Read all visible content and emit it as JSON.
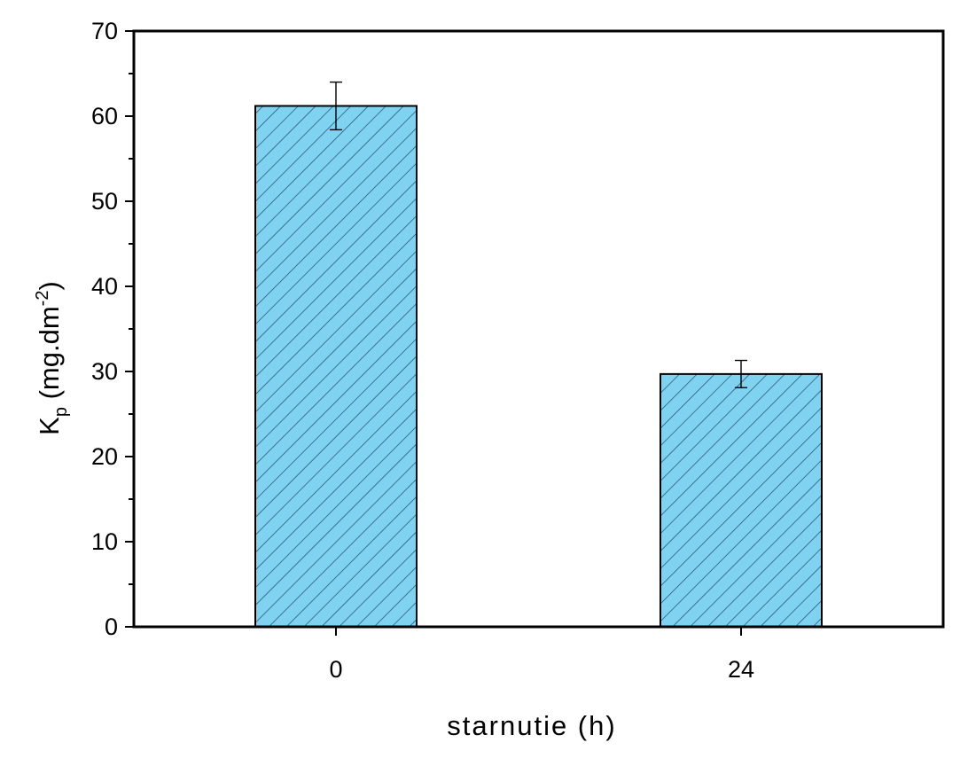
{
  "chart_data": {
    "type": "bar",
    "categories": [
      "0",
      "24"
    ],
    "values": [
      61.2,
      29.7
    ],
    "errors": [
      2.8,
      1.6
    ],
    "ylim": [
      0,
      70
    ],
    "yticks": [
      "0",
      "10",
      "20",
      "30",
      "40",
      "50",
      "60",
      "70"
    ],
    "xlabel": "starnutie (h)",
    "ylabel": {
      "main": "K",
      "subscript": "p",
      "units_prefix": " (mg.dm",
      "superscript": "-2",
      "units_suffix": ")"
    },
    "bar_color": "#7fd2f0",
    "bar_hatch_color": "#1d4f66",
    "grid": false,
    "legend": "none"
  }
}
